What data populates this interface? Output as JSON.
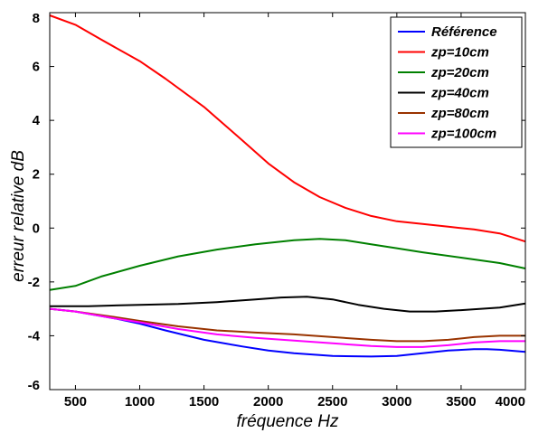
{
  "chart_data": {
    "type": "line",
    "title": "",
    "xlabel": "fréquence Hz",
    "ylabel": "erreur relative dB",
    "xlim": [
      300,
      4000
    ],
    "ylim": [
      -6,
      8
    ],
    "xticks": [
      500,
      1000,
      1500,
      2000,
      2500,
      3000,
      3500,
      4000
    ],
    "yticks": [
      -6,
      -4,
      -2,
      0,
      2,
      4,
      6,
      8
    ],
    "grid": false,
    "legend_position": "top-right",
    "series": [
      {
        "name": "Référence",
        "color": "#0000ff",
        "points": [
          [
            300,
            -3.0
          ],
          [
            500,
            -3.1
          ],
          [
            800,
            -3.35
          ],
          [
            1000,
            -3.55
          ],
          [
            1200,
            -3.8
          ],
          [
            1500,
            -4.15
          ],
          [
            1800,
            -4.4
          ],
          [
            2000,
            -4.55
          ],
          [
            2200,
            -4.65
          ],
          [
            2500,
            -4.75
          ],
          [
            2800,
            -4.77
          ],
          [
            3000,
            -4.75
          ],
          [
            3200,
            -4.65
          ],
          [
            3400,
            -4.55
          ],
          [
            3600,
            -4.5
          ],
          [
            3700,
            -4.5
          ],
          [
            3800,
            -4.52
          ],
          [
            4000,
            -4.6
          ]
        ]
      },
      {
        "name": "zp=10cm",
        "color": "#ff0000",
        "points": [
          [
            300,
            7.9
          ],
          [
            500,
            7.55
          ],
          [
            700,
            7.0
          ],
          [
            1000,
            6.2
          ],
          [
            1200,
            5.55
          ],
          [
            1500,
            4.5
          ],
          [
            1800,
            3.25
          ],
          [
            2000,
            2.4
          ],
          [
            2200,
            1.7
          ],
          [
            2400,
            1.15
          ],
          [
            2600,
            0.75
          ],
          [
            2800,
            0.45
          ],
          [
            3000,
            0.25
          ],
          [
            3200,
            0.15
          ],
          [
            3400,
            0.05
          ],
          [
            3600,
            -0.05
          ],
          [
            3800,
            -0.2
          ],
          [
            4000,
            -0.5
          ]
        ]
      },
      {
        "name": "zp=20cm",
        "color": "#008000",
        "points": [
          [
            300,
            -2.3
          ],
          [
            500,
            -2.15
          ],
          [
            700,
            -1.8
          ],
          [
            1000,
            -1.4
          ],
          [
            1300,
            -1.05
          ],
          [
            1600,
            -0.8
          ],
          [
            1900,
            -0.6
          ],
          [
            2200,
            -0.45
          ],
          [
            2400,
            -0.4
          ],
          [
            2600,
            -0.45
          ],
          [
            2800,
            -0.6
          ],
          [
            3000,
            -0.75
          ],
          [
            3200,
            -0.9
          ],
          [
            3500,
            -1.1
          ],
          [
            3800,
            -1.3
          ],
          [
            4000,
            -1.5
          ]
        ]
      },
      {
        "name": "zp=40cm",
        "color": "#000000",
        "points": [
          [
            300,
            -2.9
          ],
          [
            600,
            -2.9
          ],
          [
            1000,
            -2.85
          ],
          [
            1300,
            -2.82
          ],
          [
            1600,
            -2.75
          ],
          [
            1900,
            -2.65
          ],
          [
            2100,
            -2.58
          ],
          [
            2300,
            -2.55
          ],
          [
            2500,
            -2.65
          ],
          [
            2700,
            -2.85
          ],
          [
            2900,
            -3.0
          ],
          [
            3100,
            -3.1
          ],
          [
            3300,
            -3.1
          ],
          [
            3500,
            -3.05
          ],
          [
            3800,
            -2.95
          ],
          [
            4000,
            -2.8
          ]
        ]
      },
      {
        "name": "zp=80cm",
        "color": "#993300",
        "points": [
          [
            300,
            -3.0
          ],
          [
            500,
            -3.1
          ],
          [
            800,
            -3.3
          ],
          [
            1000,
            -3.45
          ],
          [
            1300,
            -3.65
          ],
          [
            1600,
            -3.8
          ],
          [
            1900,
            -3.88
          ],
          [
            2200,
            -3.95
          ],
          [
            2500,
            -4.05
          ],
          [
            2800,
            -4.15
          ],
          [
            3000,
            -4.2
          ],
          [
            3200,
            -4.2
          ],
          [
            3400,
            -4.15
          ],
          [
            3600,
            -4.05
          ],
          [
            3800,
            -4.0
          ],
          [
            4000,
            -4.0
          ]
        ]
      },
      {
        "name": "zp=100cm",
        "color": "#ff00ff",
        "points": [
          [
            300,
            -3.0
          ],
          [
            500,
            -3.1
          ],
          [
            800,
            -3.35
          ],
          [
            1000,
            -3.5
          ],
          [
            1300,
            -3.75
          ],
          [
            1600,
            -3.95
          ],
          [
            1900,
            -4.08
          ],
          [
            2200,
            -4.18
          ],
          [
            2500,
            -4.28
          ],
          [
            2800,
            -4.38
          ],
          [
            3000,
            -4.42
          ],
          [
            3200,
            -4.42
          ],
          [
            3400,
            -4.35
          ],
          [
            3600,
            -4.25
          ],
          [
            3800,
            -4.2
          ],
          [
            4000,
            -4.2
          ]
        ]
      }
    ]
  }
}
